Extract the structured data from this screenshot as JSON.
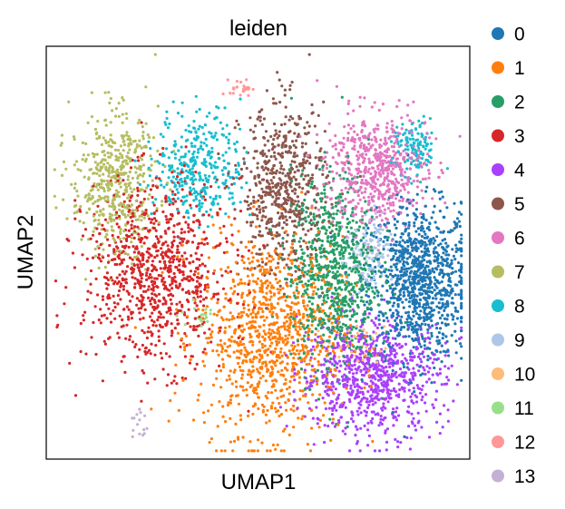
{
  "chart_data": {
    "type": "scatter",
    "title": "leiden",
    "xlabel": "UMAP1",
    "ylabel": "UMAP2",
    "xlim": [
      0,
      100
    ],
    "ylim": [
      0,
      100
    ],
    "grid": false,
    "ticks": false,
    "legend_placement": "right-outside",
    "series": [
      {
        "name": "0",
        "color": "#1f77b4",
        "clusters": [
          [
            88,
            43,
            7,
            11,
            1000
          ]
        ]
      },
      {
        "name": "1",
        "color": "#ff7f0e",
        "clusters": [
          [
            53,
            30,
            10,
            14,
            1000
          ]
        ]
      },
      {
        "name": "2",
        "color": "#279e68",
        "clusters": [
          [
            68,
            45,
            6,
            14,
            800
          ]
        ]
      },
      {
        "name": "3",
        "color": "#d62728",
        "clusters": [
          [
            26,
            45,
            10,
            13,
            900
          ]
        ]
      },
      {
        "name": "4",
        "color": "#aa40fc",
        "clusters": [
          [
            77,
            20,
            10,
            8,
            800
          ]
        ]
      },
      {
        "name": "5",
        "color": "#8c564b",
        "clusters": [
          [
            56,
            65,
            6,
            12,
            600
          ]
        ]
      },
      {
        "name": "6",
        "color": "#e377c2",
        "clusters": [
          [
            78,
            70,
            7,
            8,
            600
          ]
        ]
      },
      {
        "name": "7",
        "color": "#b5bd61",
        "clusters": [
          [
            16,
            67,
            6,
            10,
            500
          ]
        ]
      },
      {
        "name": "8",
        "color": "#17becf",
        "clusters": [
          [
            36,
            71,
            6,
            8,
            350
          ],
          [
            87,
            75,
            3,
            4,
            120
          ]
        ]
      },
      {
        "name": "9",
        "color": "#aec7e8",
        "clusters": [
          [
            76,
            49,
            3,
            6,
            120
          ]
        ]
      },
      {
        "name": "10",
        "color": "#ffbb78",
        "clusters": [
          [
            73,
            27,
            4,
            3,
            40
          ]
        ]
      },
      {
        "name": "11",
        "color": "#98df8a",
        "clusters": [
          [
            37,
            35,
            3,
            2,
            20
          ]
        ]
      },
      {
        "name": "12",
        "color": "#ff9896",
        "clusters": [
          [
            46,
            90,
            1.5,
            1.2,
            25
          ]
        ]
      },
      {
        "name": "13",
        "color": "#c5b0d5",
        "clusters": [
          [
            22,
            8,
            1.2,
            3,
            15
          ]
        ]
      }
    ]
  }
}
